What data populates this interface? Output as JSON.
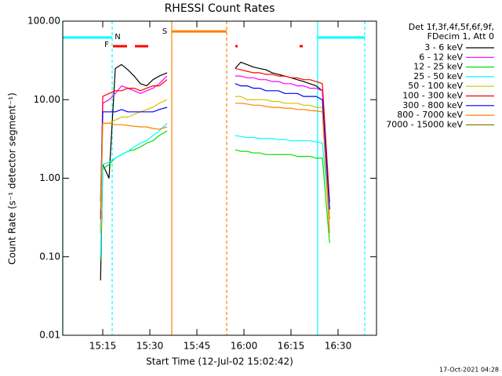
{
  "chart_data": {
    "type": "line",
    "title": "RHESSI Count Rates",
    "xlabel": "Start Time (12-Jul-02 15:02:42)",
    "ylabel": "Count Rate (s⁻¹ detector segment⁻¹)",
    "log_y": true,
    "ylim": [
      0.01,
      100
    ],
    "yticks": [
      {
        "value": 100,
        "label": "100.00"
      },
      {
        "value": 10,
        "label": "10.00"
      },
      {
        "value": 1,
        "label": "1.00"
      },
      {
        "value": 0.1,
        "label": "0.10"
      },
      {
        "value": 0.01,
        "label": "0.01"
      }
    ],
    "xlim": [
      2.25,
      102.25
    ],
    "xticks": [
      {
        "value": 15,
        "label": "15:15"
      },
      {
        "value": 30,
        "label": "15:30"
      },
      {
        "value": 45,
        "label": "15:45"
      },
      {
        "value": 60,
        "label": "16:00"
      },
      {
        "value": 75,
        "label": "16:15"
      },
      {
        "value": 90,
        "label": "16:30"
      }
    ],
    "legend_title": [
      "Det 1f,3f,4f,5f,6f,9f,",
      "FDecim 1, Att 0"
    ],
    "timestamp": "17-Oct-2021 04:28",
    "x": [
      14.3,
      15,
      17,
      19,
      21,
      23,
      25,
      27,
      29,
      31,
      33,
      35.5,
      46,
      57.2,
      59,
      61,
      63,
      65,
      67,
      69,
      71,
      73,
      75,
      77,
      79,
      81,
      83,
      85,
      87.3
    ],
    "series": [
      {
        "name": "3 - 6 keV",
        "color": "#000000",
        "values": [
          0.05,
          1.5,
          1.0,
          25,
          28,
          24,
          20,
          16,
          15,
          18,
          20,
          22,
          null,
          25,
          30,
          28,
          26,
          25,
          24,
          22,
          21,
          20,
          19,
          18,
          17,
          16,
          15,
          13,
          0.3
        ]
      },
      {
        "name": "6 - 12 keV",
        "color": "#ff00ff",
        "values": [
          0.2,
          9,
          10,
          12,
          15,
          14,
          13,
          12,
          13,
          14,
          16,
          20,
          null,
          20,
          20,
          19,
          19,
          18,
          18,
          17,
          17,
          16,
          16,
          15,
          15,
          14,
          14,
          13,
          0.4
        ]
      },
      {
        "name": "12 - 25 keV",
        "color": "#00e000",
        "values": [
          0.09,
          1.3,
          1.5,
          1.8,
          2,
          2.2,
          2.3,
          2.5,
          2.8,
          3,
          3.5,
          4,
          null,
          2.3,
          2.2,
          2.2,
          2.1,
          2.1,
          2,
          2,
          2,
          2,
          2,
          1.9,
          1.9,
          1.9,
          1.8,
          1.8,
          0.15
        ]
      },
      {
        "name": "25 - 50 keV",
        "color": "#00ffff",
        "values": [
          0.1,
          1.5,
          1.6,
          1.8,
          2,
          2.2,
          2.5,
          2.8,
          3,
          3.5,
          4,
          5,
          null,
          3.5,
          3.4,
          3.3,
          3.3,
          3.2,
          3.2,
          3.2,
          3.1,
          3.1,
          3,
          3,
          3,
          3,
          2.9,
          2.8,
          0.3
        ]
      },
      {
        "name": "50 - 100 keV",
        "color": "#d8c000",
        "values": [
          0.2,
          5,
          5,
          5.5,
          6,
          6,
          6.5,
          7,
          7.5,
          8,
          9,
          10,
          null,
          11,
          11,
          10,
          10,
          10,
          10,
          9.5,
          9.5,
          9,
          9,
          9,
          8.5,
          8.5,
          8,
          8,
          0.3
        ]
      },
      {
        "name": "100 - 300 keV",
        "color": "#ff0000",
        "values": [
          0.3,
          11,
          12,
          13,
          13,
          14,
          14,
          13,
          14,
          15,
          15,
          18,
          null,
          25,
          24,
          23,
          22,
          22,
          21,
          21,
          20,
          20,
          19,
          19,
          18,
          18,
          17,
          16,
          0.5
        ]
      },
      {
        "name": "300 - 800 keV",
        "color": "#0000ff",
        "values": [
          0.5,
          7,
          7,
          7,
          7.5,
          7,
          7,
          7,
          7,
          7,
          7.5,
          8,
          null,
          16,
          15,
          15,
          14,
          14,
          13,
          13,
          13,
          12,
          12,
          12,
          11,
          11,
          11,
          10,
          0.4
        ]
      },
      {
        "name": "800 - 7000 keV",
        "color": "#ff8000",
        "values": [
          0.4,
          5,
          5,
          4.8,
          4.8,
          4.7,
          4.6,
          4.5,
          4.5,
          4.3,
          4.2,
          4.5,
          null,
          9,
          9,
          8.8,
          8.5,
          8.5,
          8.2,
          8,
          8,
          7.8,
          7.8,
          7.5,
          7.5,
          7.3,
          7.2,
          7,
          0.2
        ]
      },
      {
        "name": "7000 - 15000 keV",
        "color": "#808000",
        "values": [
          null,
          null,
          null,
          null,
          null,
          null,
          null,
          null,
          null,
          null,
          null,
          null,
          null,
          null,
          null,
          null,
          null,
          null,
          null,
          null,
          null,
          null,
          null,
          null,
          null,
          null,
          null,
          null,
          null
        ]
      }
    ],
    "vlines": [
      {
        "x": 2.25,
        "color": "#00ffff",
        "dashed": false
      },
      {
        "x": 18,
        "color": "#00ffff",
        "dashed": true
      },
      {
        "x": 37,
        "color": "#ff8000",
        "dashed": false
      },
      {
        "x": 54.5,
        "color": "#ff8000",
        "dashed": true
      },
      {
        "x": 83.5,
        "color": "#00ffff",
        "dashed": false
      },
      {
        "x": 98.5,
        "color": "#00ffff",
        "dashed": true
      }
    ],
    "bars": [
      {
        "color": "#00ffff",
        "x": [
          2.25,
          18
        ],
        "y": 62
      },
      {
        "color": "#00ffff",
        "x": [
          83.5,
          98.5
        ],
        "y": 62
      },
      {
        "color": "#ff8000",
        "x": [
          37,
          54.5
        ],
        "y": 74
      },
      {
        "color": "#ff0000",
        "x": [
          18.25,
          22.75
        ],
        "y": 48
      },
      {
        "color": "#ff0000",
        "x": [
          25.25,
          29.5
        ],
        "y": 48
      },
      {
        "color": "#ff0000",
        "x": [
          57.25,
          58
        ],
        "y": 48
      },
      {
        "color": "#ff0000",
        "x": [
          77.75,
          78.75
        ],
        "y": 48
      }
    ],
    "markers": [
      {
        "text": "N",
        "color": "#00ffff",
        "x": 19.75,
        "y": 63
      },
      {
        "text": "S",
        "color": "#ff8000",
        "x": 34.75,
        "y": 74
      },
      {
        "text": "F",
        "color": "#ff0000",
        "x": 16.25,
        "y": 50
      }
    ]
  }
}
